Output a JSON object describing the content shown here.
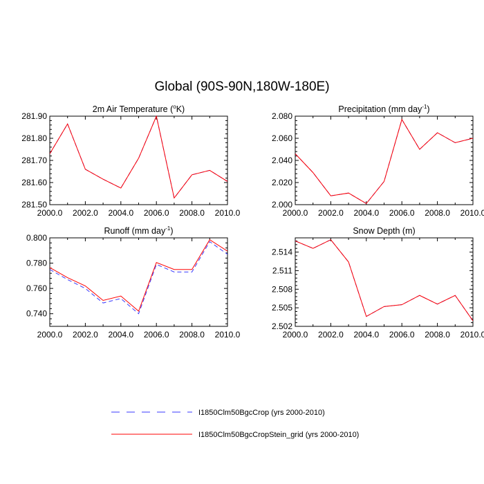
{
  "figure": {
    "title": "Global (90S-90N,180W-180E)"
  },
  "colors": {
    "blue_dashed": "#3a3aff",
    "red_solid": "#ff0000",
    "axis": "#000000"
  },
  "legend": [
    {
      "label": "I1850Clm50BgcCrop (yrs 2000-2010)",
      "color": "#3a3aff",
      "style": "dashed"
    },
    {
      "label": "I1850Clm50BgcCropStein_grid (yrs 2000-2010)",
      "color": "#ff0000",
      "style": "solid"
    }
  ],
  "chart_data": [
    {
      "type": "line",
      "title": "2m Air Temperature (",
      "title_sup": "o",
      "title_suffix": "K)",
      "x": [
        2000,
        2001,
        2002,
        2003,
        2004,
        2005,
        2006,
        2007,
        2008,
        2009,
        2010
      ],
      "xlim": [
        2000,
        2010
      ],
      "xticks": [
        2000,
        2002,
        2004,
        2006,
        2008,
        2010
      ],
      "xtick_labels": [
        "2000.0",
        "2002.0",
        "2004.0",
        "2006.0",
        "2008.0",
        "2010.0"
      ],
      "ylim": [
        281.5,
        281.9
      ],
      "yticks": [
        281.5,
        281.6,
        281.7,
        281.8,
        281.9
      ],
      "ytick_labels": [
        "281.50",
        "281.60",
        "281.70",
        "281.80",
        "281.90"
      ],
      "series": [
        {
          "name": "I1850Clm50BgcCrop (yrs 2000-2010)",
          "values": [
            281.73,
            281.865,
            281.66,
            281.615,
            281.575,
            281.71,
            281.9,
            281.53,
            281.635,
            281.655,
            281.605
          ]
        },
        {
          "name": "I1850Clm50BgcCropStein_grid (yrs 2000-2010)",
          "values": [
            281.73,
            281.865,
            281.66,
            281.615,
            281.575,
            281.71,
            281.9,
            281.53,
            281.635,
            281.655,
            281.605
          ]
        }
      ]
    },
    {
      "type": "line",
      "title": "Precipitation (mm day",
      "title_sup": "-1",
      "title_suffix": ")",
      "x": [
        2000,
        2001,
        2002,
        2003,
        2004,
        2005,
        2006,
        2007,
        2008,
        2009,
        2010
      ],
      "xlim": [
        2000,
        2010
      ],
      "xticks": [
        2000,
        2002,
        2004,
        2006,
        2008,
        2010
      ],
      "xtick_labels": [
        "2000.0",
        "2002.0",
        "2004.0",
        "2006.0",
        "2008.0",
        "2010.0"
      ],
      "ylim": [
        2.0,
        2.08
      ],
      "yticks": [
        2.0,
        2.02,
        2.04,
        2.06,
        2.08
      ],
      "ytick_labels": [
        "2.000",
        "2.020",
        "2.040",
        "2.060",
        "2.080"
      ],
      "series": [
        {
          "name": "I1850Clm50BgcCrop (yrs 2000-2010)",
          "values": [
            2.046,
            2.029,
            2.008,
            2.0105,
            2.001,
            2.021,
            2.077,
            2.05,
            2.065,
            2.056,
            2.06
          ]
        },
        {
          "name": "I1850Clm50BgcCropStein_grid (yrs 2000-2010)",
          "values": [
            2.046,
            2.029,
            2.008,
            2.0105,
            2.001,
            2.021,
            2.077,
            2.05,
            2.065,
            2.056,
            2.06
          ]
        }
      ]
    },
    {
      "type": "line",
      "title": "Runoff (mm day",
      "title_sup": "-1",
      "title_suffix": ")",
      "x": [
        2000,
        2001,
        2002,
        2003,
        2004,
        2005,
        2006,
        2007,
        2008,
        2009,
        2010
      ],
      "xlim": [
        2000,
        2010
      ],
      "xticks": [
        2000,
        2002,
        2004,
        2006,
        2008,
        2010
      ],
      "xtick_labels": [
        "2000.0",
        "2002.0",
        "2004.0",
        "2006.0",
        "2008.0",
        "2010.0"
      ],
      "ylim": [
        0.73,
        0.8
      ],
      "yticks": [
        0.74,
        0.76,
        0.78,
        0.8
      ],
      "ytick_labels": [
        "0.740",
        "0.760",
        "0.780",
        "0.800"
      ],
      "series": [
        {
          "name": "I1850Clm50BgcCrop (yrs 2000-2010)",
          "values": [
            0.775,
            0.767,
            0.76,
            0.7485,
            0.752,
            0.74,
            0.779,
            0.773,
            0.773,
            0.797,
            0.787
          ]
        },
        {
          "name": "I1850Clm50BgcCropStein_grid (yrs 2000-2010)",
          "values": [
            0.7765,
            0.7685,
            0.762,
            0.7505,
            0.754,
            0.742,
            0.7805,
            0.775,
            0.775,
            0.7985,
            0.7895
          ]
        }
      ]
    },
    {
      "type": "line",
      "title": "Snow Depth (m)",
      "title_sup": "",
      "title_suffix": "",
      "x": [
        2000,
        2001,
        2002,
        2003,
        2004,
        2005,
        2006,
        2007,
        2008,
        2009,
        2010
      ],
      "xlim": [
        2000,
        2010
      ],
      "xticks": [
        2000,
        2002,
        2004,
        2006,
        2008,
        2010
      ],
      "xtick_labels": [
        "2000.0",
        "2002.0",
        "2004.0",
        "2006.0",
        "2008.0",
        "2010.0"
      ],
      "ylim": [
        2.502,
        2.5163
      ],
      "yticks": [
        2.502,
        2.505,
        2.508,
        2.511,
        2.514
      ],
      "ytick_labels": [
        "2.502",
        "2.505",
        "2.508",
        "2.511",
        "2.514"
      ],
      "series": [
        {
          "name": "I1850Clm50BgcCrop (yrs 2000-2010)",
          "values": [
            2.5158,
            2.5146,
            2.516,
            2.5124,
            2.5036,
            2.5052,
            2.5055,
            2.507,
            2.5056,
            2.507,
            2.5029
          ]
        },
        {
          "name": "I1850Clm50BgcCropStein_grid (yrs 2000-2010)",
          "values": [
            2.5158,
            2.5146,
            2.516,
            2.5124,
            2.5036,
            2.5052,
            2.5055,
            2.507,
            2.5056,
            2.507,
            2.5029
          ]
        }
      ]
    }
  ]
}
